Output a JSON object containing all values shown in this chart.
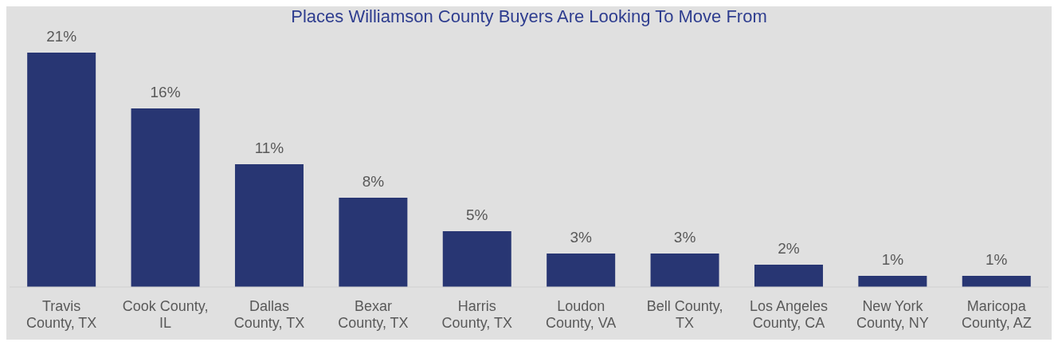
{
  "chart_data": {
    "type": "bar",
    "title": "Places Williamson County Buyers Are Looking To Move From",
    "categories": [
      "Travis County, TX",
      "Cook County, IL",
      "Dallas County, TX",
      "Bexar County, TX",
      "Harris County, TX",
      "Loudon County, VA",
      "Bell County, TX",
      "Los Angeles County, CA",
      "New York County, NY",
      "Maricopa County, AZ"
    ],
    "values": [
      21,
      16,
      11,
      8,
      5,
      3,
      3,
      2,
      1,
      1
    ],
    "value_labels": [
      "21%",
      "16%",
      "11%",
      "8%",
      "5%",
      "3%",
      "3%",
      "2%",
      "1%",
      "1%"
    ],
    "color": "#283673",
    "grid": false
  }
}
